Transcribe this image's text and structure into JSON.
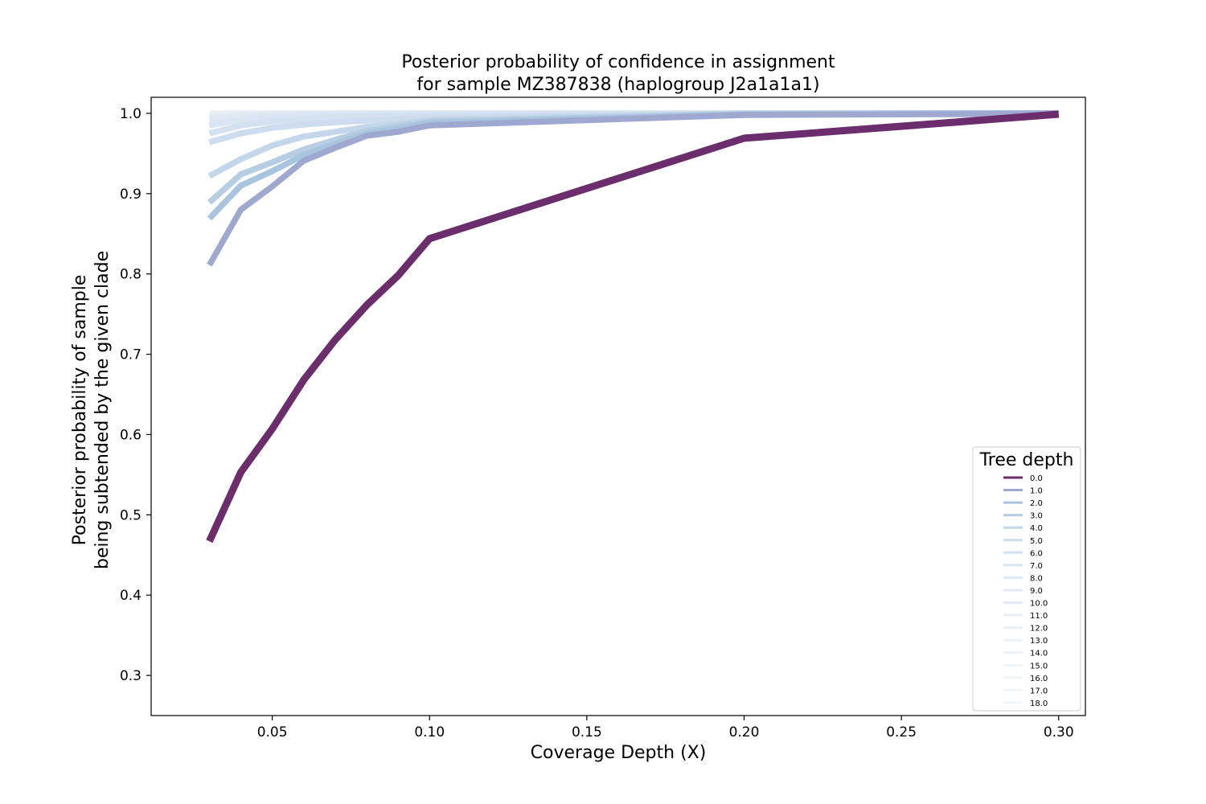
{
  "chart_data": {
    "type": "line",
    "title_line1": "Posterior probability of confidence in assignment",
    "title_line2": "for sample MZ387838 (haplogroup J2a1a1a1)",
    "xlabel": "Coverage Depth (X)",
    "ylabel_line1": "Posterior probability of sample",
    "ylabel_line2": "being subtended by the given clade",
    "xlim": [
      0.0115,
      0.3085
    ],
    "ylim": [
      0.25,
      1.02
    ],
    "xticks": [
      0.05,
      0.1,
      0.15,
      0.2,
      0.25,
      0.3
    ],
    "xtick_labels": [
      "0.05",
      "0.10",
      "0.15",
      "0.20",
      "0.25",
      "0.30"
    ],
    "yticks": [
      0.3,
      0.4,
      0.5,
      0.6,
      0.7,
      0.8,
      0.9,
      1.0
    ],
    "ytick_labels": [
      "0.3",
      "0.4",
      "0.5",
      "0.6",
      "0.7",
      "0.8",
      "0.9",
      "1.0"
    ],
    "grid": false,
    "legend_title": "Tree depth",
    "legend_position": "lower right",
    "x": [
      0.03,
      0.04,
      0.05,
      0.06,
      0.07,
      0.08,
      0.09,
      0.1,
      0.2,
      0.267,
      0.3
    ],
    "series": [
      {
        "name": "0.0",
        "color": "#6b2d6b",
        "values": [
          0.467,
          0.553,
          0.607,
          0.668,
          0.718,
          0.761,
          0.798,
          0.844,
          0.969,
          0.989,
          0.999
        ]
      },
      {
        "name": "1.0",
        "color": "#9fa9d0",
        "values": [
          0.811,
          0.88,
          0.909,
          0.941,
          0.957,
          0.972,
          0.977,
          0.985,
          0.998,
          0.999,
          1.0
        ]
      },
      {
        "name": "2.0",
        "color": "#a9c4de",
        "values": [
          0.869,
          0.91,
          0.928,
          0.948,
          0.962,
          0.975,
          0.981,
          0.988,
          0.999,
          1.0,
          1.0
        ]
      },
      {
        "name": "3.0",
        "color": "#b6cde3",
        "values": [
          0.889,
          0.924,
          0.939,
          0.955,
          0.967,
          0.978,
          0.984,
          0.99,
          0.999,
          1.0,
          1.0
        ]
      },
      {
        "name": "4.0",
        "color": "#c4d6ea",
        "values": [
          0.922,
          0.943,
          0.96,
          0.971,
          0.977,
          0.983,
          0.987,
          0.992,
          1.0,
          1.0,
          1.0
        ]
      },
      {
        "name": "5.0",
        "color": "#cddcee",
        "values": [
          0.964,
          0.975,
          0.982,
          0.986,
          0.989,
          0.991,
          0.993,
          0.995,
          1.0,
          1.0,
          1.0
        ]
      },
      {
        "name": "6.0",
        "color": "#d4e1f0",
        "values": [
          0.975,
          0.985,
          0.99,
          0.993,
          0.995,
          0.996,
          0.997,
          0.998,
          1.0,
          1.0,
          1.0
        ]
      },
      {
        "name": "7.0",
        "color": "#d9e5f2",
        "values": [
          0.985,
          0.992,
          0.995,
          0.997,
          0.998,
          0.998,
          0.999,
          0.999,
          1.0,
          1.0,
          1.0
        ]
      },
      {
        "name": "8.0",
        "color": "#dde8f3",
        "values": [
          0.99,
          0.995,
          0.997,
          0.998,
          0.999,
          0.999,
          1.0,
          1.0,
          1.0,
          1.0,
          1.0
        ]
      },
      {
        "name": "9.0",
        "color": "#e1eaf4",
        "values": [
          0.993,
          0.997,
          0.998,
          0.999,
          0.999,
          1.0,
          1.0,
          1.0,
          1.0,
          1.0,
          1.0
        ]
      },
      {
        "name": "10.0",
        "color": "#e3ecf5",
        "values": [
          0.995,
          0.998,
          0.999,
          0.999,
          1.0,
          1.0,
          1.0,
          1.0,
          1.0,
          1.0,
          1.0
        ]
      },
      {
        "name": "11.0",
        "color": "#e6eef6",
        "values": [
          0.997,
          0.999,
          0.999,
          1.0,
          1.0,
          1.0,
          1.0,
          1.0,
          1.0,
          1.0,
          1.0
        ]
      },
      {
        "name": "12.0",
        "color": "#e8eff7",
        "values": [
          0.998,
          0.999,
          1.0,
          1.0,
          1.0,
          1.0,
          1.0,
          1.0,
          1.0,
          1.0,
          1.0
        ]
      },
      {
        "name": "13.0",
        "color": "#eaf1f7",
        "values": [
          0.999,
          1.0,
          1.0,
          1.0,
          1.0,
          1.0,
          1.0,
          1.0,
          1.0,
          1.0,
          1.0
        ]
      },
      {
        "name": "14.0",
        "color": "#ecf2f8",
        "values": [
          0.999,
          1.0,
          1.0,
          1.0,
          1.0,
          1.0,
          1.0,
          1.0,
          1.0,
          1.0,
          1.0
        ]
      },
      {
        "name": "15.0",
        "color": "#eef3f8",
        "values": [
          1.0,
          1.0,
          1.0,
          1.0,
          1.0,
          1.0,
          1.0,
          1.0,
          1.0,
          1.0,
          1.0
        ]
      },
      {
        "name": "16.0",
        "color": "#f0f4f9",
        "values": [
          1.0,
          1.0,
          1.0,
          1.0,
          1.0,
          1.0,
          1.0,
          1.0,
          1.0,
          1.0,
          1.0
        ]
      },
      {
        "name": "17.0",
        "color": "#f1f5f9",
        "values": [
          1.0,
          1.0,
          1.0,
          1.0,
          1.0,
          1.0,
          1.0,
          1.0,
          1.0,
          1.0,
          1.0
        ]
      },
      {
        "name": "18.0",
        "color": "#f3f6fa",
        "values": [
          1.0,
          1.0,
          1.0,
          1.0,
          1.0,
          1.0,
          1.0,
          1.0,
          1.0,
          1.0,
          1.0
        ]
      }
    ]
  }
}
